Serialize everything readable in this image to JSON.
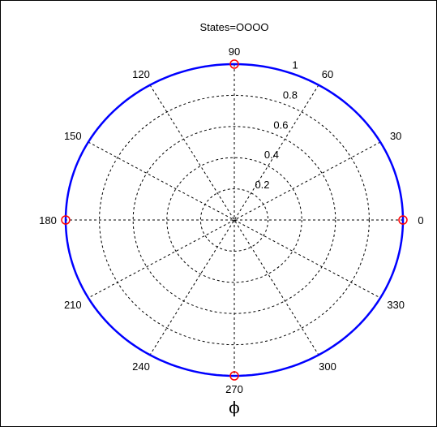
{
  "chart_data": {
    "type": "polar",
    "title": "States=OOOO",
    "xlabel": "ϕ",
    "radial_ticks": [
      "0.2",
      "0.4",
      "0.6",
      "0.8",
      "1"
    ],
    "radial_values": [
      0.2,
      0.4,
      0.6,
      0.8,
      1.0
    ],
    "rlim": [
      0,
      1
    ],
    "angle_ticks": [
      "0",
      "30",
      "60",
      "90",
      "120",
      "150",
      "180",
      "210",
      "240",
      "270",
      "300",
      "330"
    ],
    "angle_values_deg": [
      0,
      30,
      60,
      90,
      120,
      150,
      180,
      210,
      240,
      270,
      300,
      330
    ],
    "grid": true,
    "series": [
      {
        "style": "line",
        "color": "#0000ff",
        "theta_deg": [
          0,
          30,
          60,
          90,
          120,
          150,
          180,
          210,
          240,
          270,
          300,
          330,
          360
        ],
        "r": [
          1,
          1,
          1,
          1,
          1,
          1,
          1,
          1,
          1,
          1,
          1,
          1,
          1
        ]
      },
      {
        "style": "markers",
        "marker": "circle",
        "color": "#ff0000",
        "theta_deg": [
          0,
          90,
          180,
          270
        ],
        "r": [
          1,
          1,
          1,
          1
        ]
      }
    ]
  }
}
